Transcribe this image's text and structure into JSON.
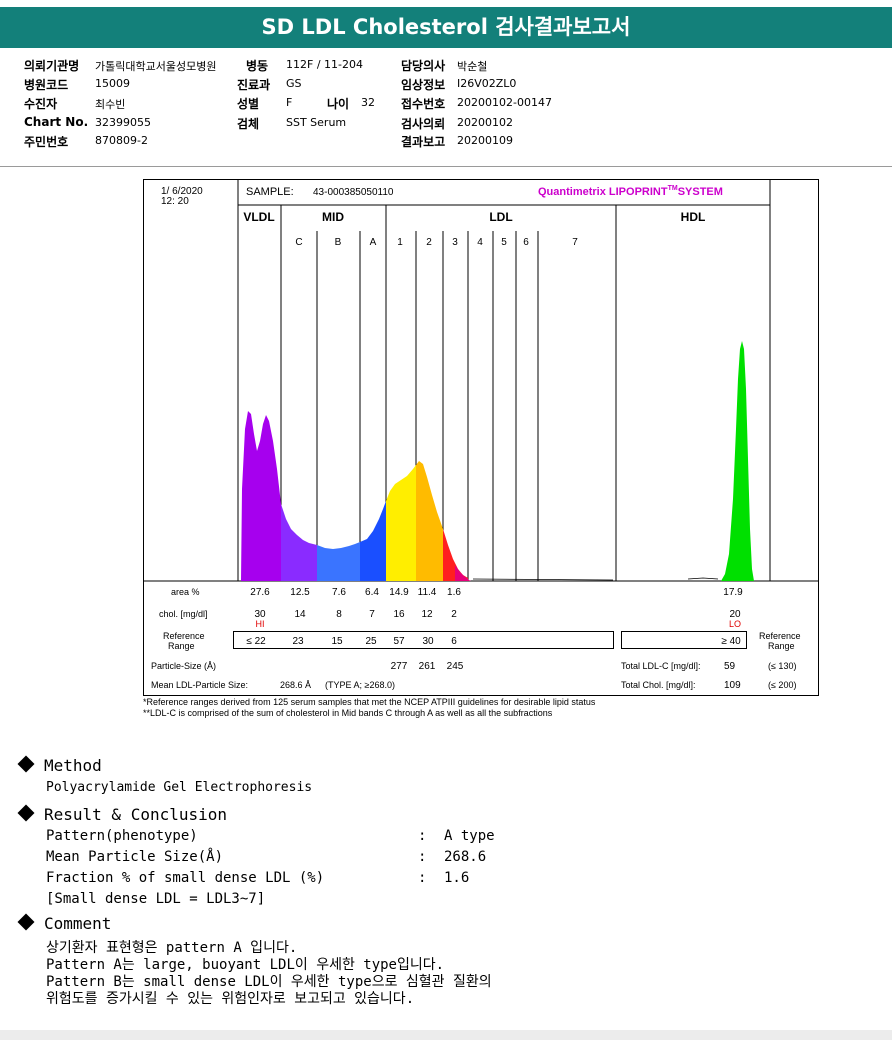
{
  "title": "SD LDL Cholesterol 검사결과보고서",
  "info": {
    "col1": [
      {
        "label": "의뢰기관명",
        "value": "가톨릭대학교서울성모병원"
      },
      {
        "label": "병원코드",
        "value": "15009"
      },
      {
        "label": "수진자",
        "value": "최수빈"
      },
      {
        "label": "Chart No.",
        "value": "32399055"
      },
      {
        "label": "주민번호",
        "value": "870809-2"
      }
    ],
    "col2": [
      {
        "label": "병동",
        "value": "112F / 11-204"
      },
      {
        "label": "진료과",
        "value": "GS"
      },
      {
        "label": "성별",
        "value": "F"
      },
      {
        "label": "검체",
        "value": "SST Serum"
      }
    ],
    "age_label": "나이",
    "age_value": "32",
    "col3": [
      {
        "label": "담당의사",
        "value": "박순철"
      },
      {
        "label": "임상정보",
        "value": "I26V02ZL0"
      },
      {
        "label": "접수번호",
        "value": "20200102-00147"
      },
      {
        "label": "검사의뢰",
        "value": "20200102"
      },
      {
        "label": "결과보고",
        "value": "20200109"
      }
    ]
  },
  "report": {
    "date": "1/  6/2020",
    "time": "12: 20",
    "sample_label": "SAMPLE:",
    "sample_id": "43-000385050110",
    "brand": "Quantimetrix LIPOPRINT",
    "brand_tm": "TM",
    "brand_suffix": "SYSTEM",
    "brand_color": "#cc00cc",
    "groups": [
      "VLDL",
      "MID",
      "LDL",
      "HDL"
    ],
    "bands": [
      "C",
      "B",
      "A",
      "1",
      "2",
      "3",
      "4",
      "5",
      "6",
      "7"
    ],
    "fill_colors": {
      "vldl": "#a600ee",
      "mid_c": "#8a2bff",
      "mid_b": "#3a74ff",
      "mid_a": "#1a4fff",
      "ldl1": "#ffee00",
      "ldl2": "#ffbb00",
      "ldl3": "#ff1f1f",
      "ldl3b": "#e6007a",
      "hdl": "#00e000"
    },
    "area_label": "area %",
    "area_values": [
      "27.6",
      "12.5",
      "7.6",
      "6.4",
      "14.9",
      "11.4",
      "1.6"
    ],
    "area_hdl": "17.9",
    "chol_label": "chol. [mg/dl]",
    "chol_values": [
      "30",
      "14",
      "8",
      "7",
      "16",
      "12",
      "2"
    ],
    "chol_hdl": "20",
    "hi_flag": "HI",
    "lo_flag": "LO",
    "flag_color": "#e00000",
    "ref_label_1": "Reference",
    "ref_label_2": "Range",
    "ref_values": [
      "≤ 22",
      "23",
      "15",
      "25",
      "57",
      "30",
      "6"
    ],
    "ref_hdl": "≥ 40",
    "ref_right_1": "Reference",
    "ref_right_2": "Range",
    "particle_size_label": "Particle-Size (Å)",
    "particle_sizes": [
      "277",
      "261",
      "245"
    ],
    "total_ldl_label": "Total LDL-C [mg/dl]:",
    "total_ldl_value": "59",
    "total_ldl_ref": "(≤ 130)",
    "mean_ldl_label": "Mean LDL-Particle Size:",
    "mean_ldl_value": "268.6 Å",
    "mean_ldl_type": "(TYPE A; ≥268.0)",
    "total_chol_label": "Total Chol. [mg/dl]:",
    "total_chol_value": "109",
    "total_chol_ref": "(≤ 200)"
  },
  "notes": [
    "*Reference ranges derived from 125 serum samples that met the NCEP ATPIII guidelines for desirable lipid status",
    "**LDL-C is comprised of the sum of cholesterol in Mid bands C through A as well as all the subfractions"
  ],
  "method": {
    "heading": "Method",
    "text": "Polyacrylamide Gel Electrophoresis"
  },
  "result": {
    "heading": "Result & Conclusion",
    "rows": [
      {
        "label": "Pattern(phenotype)",
        "sep": ":",
        "value": "A type"
      },
      {
        "label": "Mean Particle Size(Å)",
        "sep": ":",
        "value": "268.6"
      },
      {
        "label": "Fraction % of small dense LDL (%)",
        "sep": ":",
        "value": "1.6"
      }
    ],
    "note": "[Small dense LDL = LDL3~7]"
  },
  "comment": {
    "heading": "Comment",
    "lines": [
      "상기환자 표현형은 pattern A 입니다.",
      "Pattern A는 large, buoyant LDL이 우세한 type입니다.",
      "Pattern B는 small dense LDL이 우세한 type으로 심혈관 질환의",
      "위험도를 증가시킬 수 있는 위험인자로 보고되고 있습니다."
    ]
  }
}
